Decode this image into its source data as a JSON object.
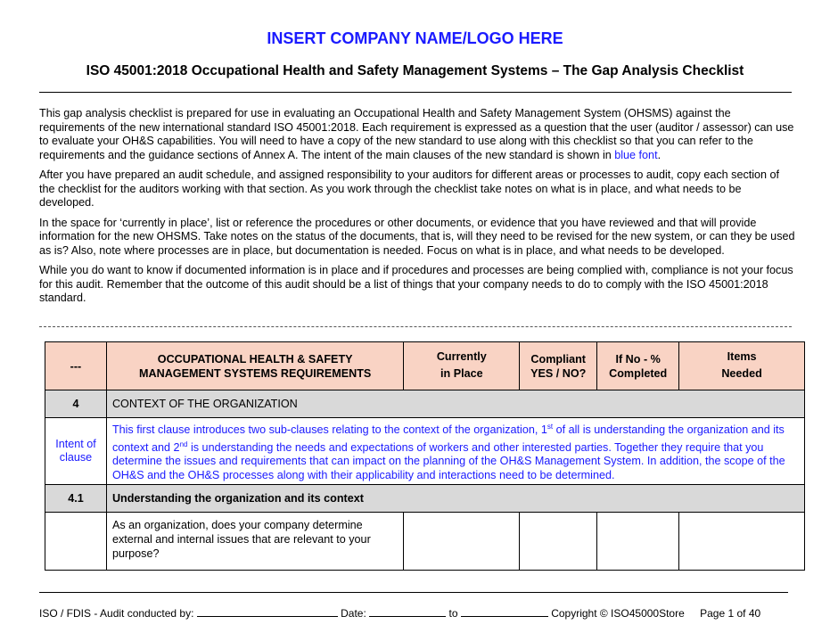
{
  "header": {
    "company": "INSERT COMPANY NAME/LOGO HERE",
    "title": "ISO 45001:2018 Occupational Health and Safety Management Systems – The Gap Analysis Checklist"
  },
  "intro": {
    "p1": "This gap analysis checklist is prepared for use in evaluating an Occupational Health and Safety Management System (OHSMS) against the requirements of the new international standard ISO 45001:2018.  Each requirement is expressed as a question that the user (auditor / assessor) can use to evaluate your OH&S capabilities.  You will need to have a copy of the new standard to use along with this checklist so that you can refer to the requirements and the guidance sections of Annex A. The intent of the main clauses of the new standard is shown in ",
    "p1_blue": "blue font",
    "p1_end": ".",
    "p2": "After you have prepared an audit schedule, and assigned responsibility to your auditors for different areas or processes to audit, copy each section of the checklist for the auditors working with that section. As you work through the checklist take notes on what is in place, and what needs to be developed.",
    "p3": "In the space for ‘currently in place’, list or reference the procedures or other documents, or evidence that you have reviewed and that will provide information for the new OHSMS. Take notes on the status of the documents, that is, will they need to be revised for the new system, or can they be used as is?  Also, note where processes are in place, but documentation is needed. Focus on what is in place, and what needs to be developed.",
    "p4": "While you do want to know if documented information is in place and if procedures and processes are being complied with, compliance is not your focus for this audit. Remember that the outcome of this audit should be a list of things that your company needs to do to comply with the ISO 45001:2018 standard."
  },
  "table": {
    "headers": {
      "num": "---",
      "req_1": "OCCUPATIONAL HEALTH & SAFETY",
      "req_2": "MANAGEMENT SYSTEMS REQUIREMENTS",
      "cur_1": "Currently",
      "cur_2": "in Place",
      "comp_1": "Compliant",
      "comp_2": "YES / NO?",
      "pct_1": "If No - %",
      "pct_2": "Completed",
      "items_1": "Items",
      "items_2": "Needed"
    },
    "section": {
      "num": "4",
      "title": "CONTEXT OF THE ORGANIZATION"
    },
    "intent": {
      "label": "Intent of clause",
      "text_a": "This first clause introduces two sub-clauses relating to the context of the organization, 1",
      "sup1": "st",
      "text_b": " of all is understanding the organization and its context and 2",
      "sup2": "nd",
      "text_c": " is understanding the needs and expectations of workers and other interested parties. Together they require that you determine the issues and requirements that can impact on the planning of the OH&S Management System. In addition, the scope of the OH&S and the OH&S processes along with their applicability and interactions need to be determined."
    },
    "subsection": {
      "num": "4.1",
      "title": "Understanding the organization and its context"
    },
    "question": "As an organization, does your company determine external and internal issues that are relevant to your purpose?"
  },
  "footer": {
    "audit": "ISO / FDIS - Audit conducted by:",
    "date": "Date:",
    "to": "to",
    "copyright": "Copyright © ISO45000Store",
    "page": "Page 1 of 40"
  },
  "colors": {
    "company": "#1a1aff",
    "header_bg": "#f9d3c4",
    "section_bg": "#d9d9d9"
  }
}
